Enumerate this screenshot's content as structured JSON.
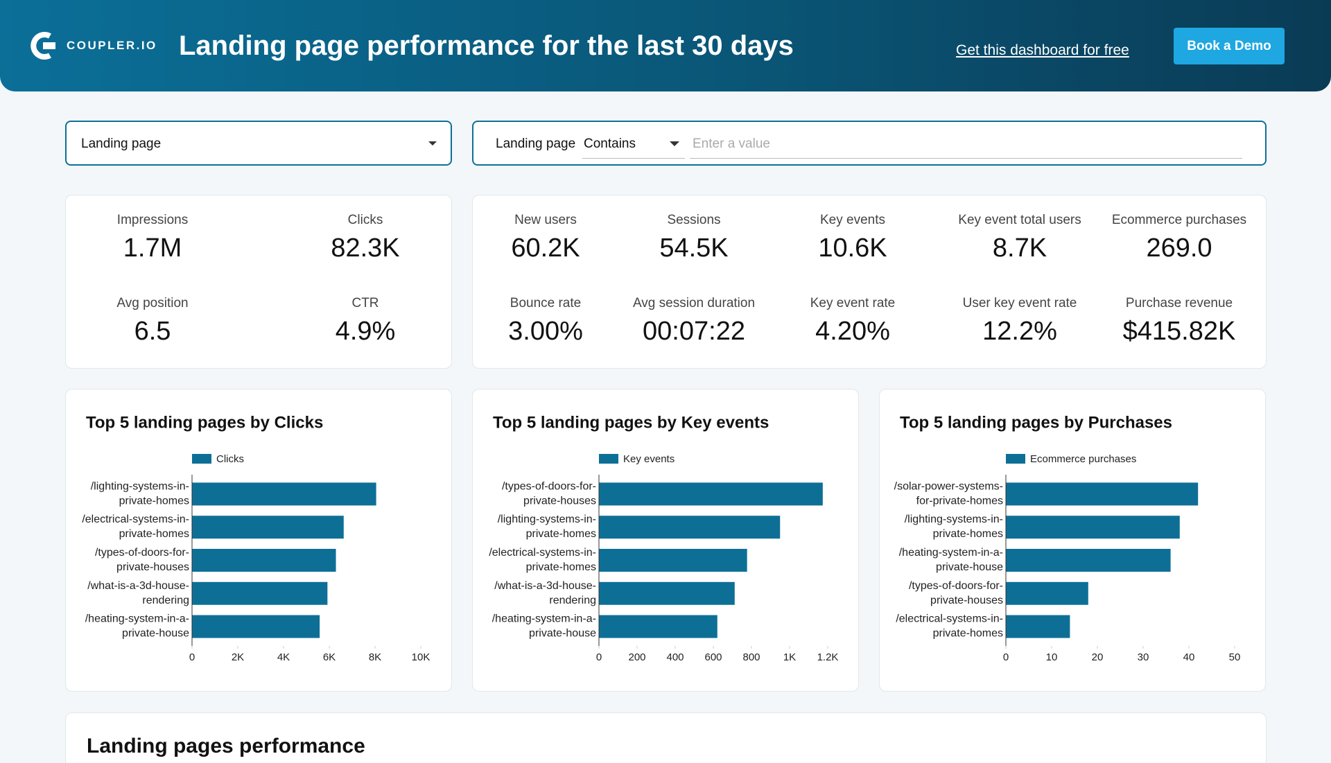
{
  "header": {
    "brand": "COUPLER.IO",
    "title": "Landing page performance for the last 30 days",
    "link": "Get this dashboard for free",
    "button": "Book a Demo"
  },
  "filters": {
    "dropdown": "Landing page",
    "field": "Landing page",
    "operator": "Contains",
    "placeholder": "Enter a value"
  },
  "kpis": {
    "left": [
      {
        "label": "Impressions",
        "value": "1.7M"
      },
      {
        "label": "Clicks",
        "value": "82.3K"
      },
      {
        "label": "Avg position",
        "value": "6.5"
      },
      {
        "label": "CTR",
        "value": "4.9%"
      }
    ],
    "right": [
      {
        "label": "New users",
        "value": "60.2K"
      },
      {
        "label": "Sessions",
        "value": "54.5K"
      },
      {
        "label": "Key events",
        "value": "10.6K"
      },
      {
        "label": "Key event total users",
        "value": "8.7K"
      },
      {
        "label": "Ecommerce purchases",
        "value": "269.0"
      },
      {
        "label": "Bounce rate",
        "value": "3.00%"
      },
      {
        "label": "Avg session duration",
        "value": "00:07:22"
      },
      {
        "label": "Key event rate",
        "value": "4.20%"
      },
      {
        "label": "User key event rate",
        "value": "12.2%"
      },
      {
        "label": "Purchase revenue",
        "value": "$415.82K"
      }
    ]
  },
  "chart_data": [
    {
      "type": "bar",
      "orientation": "horizontal",
      "title": "Top 5 landing pages by Clicks",
      "categories": [
        "/lighting-systems-in-private-homes",
        "/electrical-systems-in-private-homes",
        "/types-of-doors-for-private-houses",
        "/what-is-a-3d-house-rendering",
        "/heating-system-in-a-private-house"
      ],
      "series": [
        {
          "name": "Clicks",
          "color": "#0e6f96",
          "values": [
            8050,
            6630,
            6290,
            5920,
            5580
          ]
        }
      ],
      "xlim": [
        0,
        10000
      ],
      "xticks": [
        0,
        {
          "value": 2000,
          "label": "2K"
        },
        {
          "value": 4000,
          "label": "4K"
        },
        {
          "value": 6000,
          "label": "6K"
        },
        {
          "value": 8000,
          "label": "8K"
        },
        {
          "value": 10000,
          "label": "10K"
        }
      ]
    },
    {
      "type": "bar",
      "orientation": "horizontal",
      "title": "Top 5 landing pages by Key events",
      "categories": [
        "/types-of-doors-for-private-houses",
        "/lighting-systems-in-private-homes",
        "/electrical-systems-in-private-homes",
        "/what-is-a-3d-house-rendering",
        "/heating-system-in-a-private-house"
      ],
      "series": [
        {
          "name": "Key events",
          "color": "#0e6f96",
          "values": [
            1174,
            950,
            777,
            712,
            621
          ]
        }
      ],
      "xlim": [
        0,
        1200
      ],
      "xticks": [
        0,
        200,
        400,
        600,
        800,
        {
          "value": 1000,
          "label": "1K"
        },
        {
          "value": 1200,
          "label": "1.2K"
        }
      ]
    },
    {
      "type": "bar",
      "orientation": "horizontal",
      "title": "Top 5 landing pages by Purchases",
      "categories": [
        "/solar-power-systems-for-private-homes",
        "/lighting-systems-in-private-homes",
        "/heating-system-in-a-private-house",
        "/types-of-doors-for-private-houses",
        "/electrical-systems-in-private-homes"
      ],
      "series": [
        {
          "name": "Ecommerce purchases",
          "color": "#0e6f96",
          "values": [
            42,
            38,
            36,
            18,
            14
          ]
        }
      ],
      "xlim": [
        0,
        50
      ],
      "xticks": [
        0,
        10,
        20,
        30,
        40,
        50
      ]
    }
  ],
  "table": {
    "title": "Landing pages performance"
  }
}
